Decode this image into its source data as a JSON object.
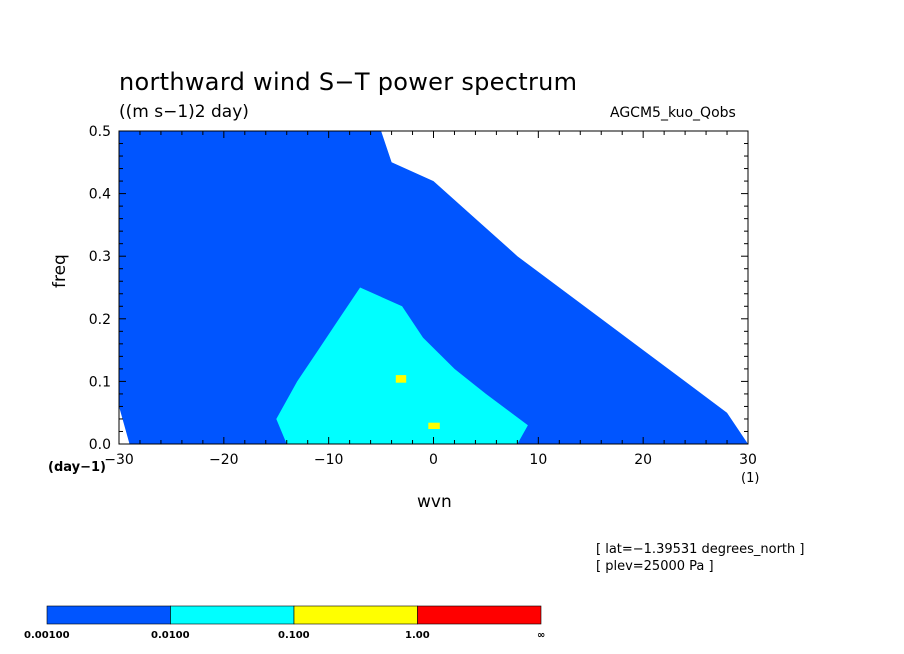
{
  "header": {
    "title": "northward wind S−T power spectrum",
    "units": "((m s−1)2 day)",
    "model": "AGCM5_kuo_Qobs"
  },
  "footer": {
    "lat": "[ lat=−1.39531 degrees_north ]",
    "plev": "[ plev=25000 Pa ]"
  },
  "chart_data": {
    "type": "heatmap",
    "title": "northward wind S−T power spectrum",
    "xlabel": "wvn",
    "ylabel": "freq",
    "x_units": "(1)",
    "y_units": "(day−1)",
    "xlim": [
      -30,
      30
    ],
    "ylim": [
      0,
      0.5
    ],
    "x_ticks": [
      -30,
      -20,
      -10,
      0,
      10,
      20,
      30
    ],
    "x_tick_labels": [
      "−30",
      "−20",
      "−10",
      "0",
      "10",
      "20",
      "30"
    ],
    "y_ticks": [
      0.0,
      0.1,
      0.2,
      0.3,
      0.4,
      0.5
    ],
    "y_tick_labels": [
      "0.0",
      "0.1",
      "0.2",
      "0.3",
      "0.4",
      "0.5"
    ],
    "levels": [
      {
        "label": "0.00100",
        "color": "#0055ff"
      },
      {
        "label": "0.0100",
        "color": "#00ffff"
      },
      {
        "label": "0.100",
        "color": "#ffff00"
      },
      {
        "label": "1.00",
        "color": "#ff0000"
      }
    ],
    "colorbar_end_label": "∞",
    "regions": [
      {
        "name": "level-1-region",
        "level": 0,
        "points": [
          [
            -30,
            0.5
          ],
          [
            -5,
            0.5
          ],
          [
            -4,
            0.45
          ],
          [
            0,
            0.42
          ],
          [
            4,
            0.36
          ],
          [
            8,
            0.3
          ],
          [
            12,
            0.25
          ],
          [
            16,
            0.2
          ],
          [
            20,
            0.15
          ],
          [
            24,
            0.1
          ],
          [
            28,
            0.05
          ],
          [
            30,
            0
          ],
          [
            -29,
            0
          ],
          [
            -30,
            0.06
          ]
        ]
      },
      {
        "name": "level-2-region",
        "level": 1,
        "points": [
          [
            -15,
            0.04
          ],
          [
            -13,
            0.1
          ],
          [
            -11,
            0.15
          ],
          [
            -9,
            0.2
          ],
          [
            -7,
            0.25
          ],
          [
            -3,
            0.22
          ],
          [
            -1,
            0.17
          ],
          [
            2,
            0.12
          ],
          [
            5,
            0.08
          ],
          [
            9,
            0.03
          ],
          [
            8,
            0
          ],
          [
            -14,
            0
          ]
        ]
      },
      {
        "name": "level-3-spot-a",
        "level": 2,
        "points": [
          [
            -3.6,
            0.098
          ],
          [
            -2.6,
            0.098
          ],
          [
            -2.6,
            0.11
          ],
          [
            -3.6,
            0.11
          ]
        ]
      },
      {
        "name": "level-3-spot-b",
        "level": 2,
        "points": [
          [
            -0.5,
            0.024
          ],
          [
            0.6,
            0.024
          ],
          [
            0.6,
            0.034
          ],
          [
            -0.5,
            0.034
          ]
        ]
      }
    ]
  }
}
